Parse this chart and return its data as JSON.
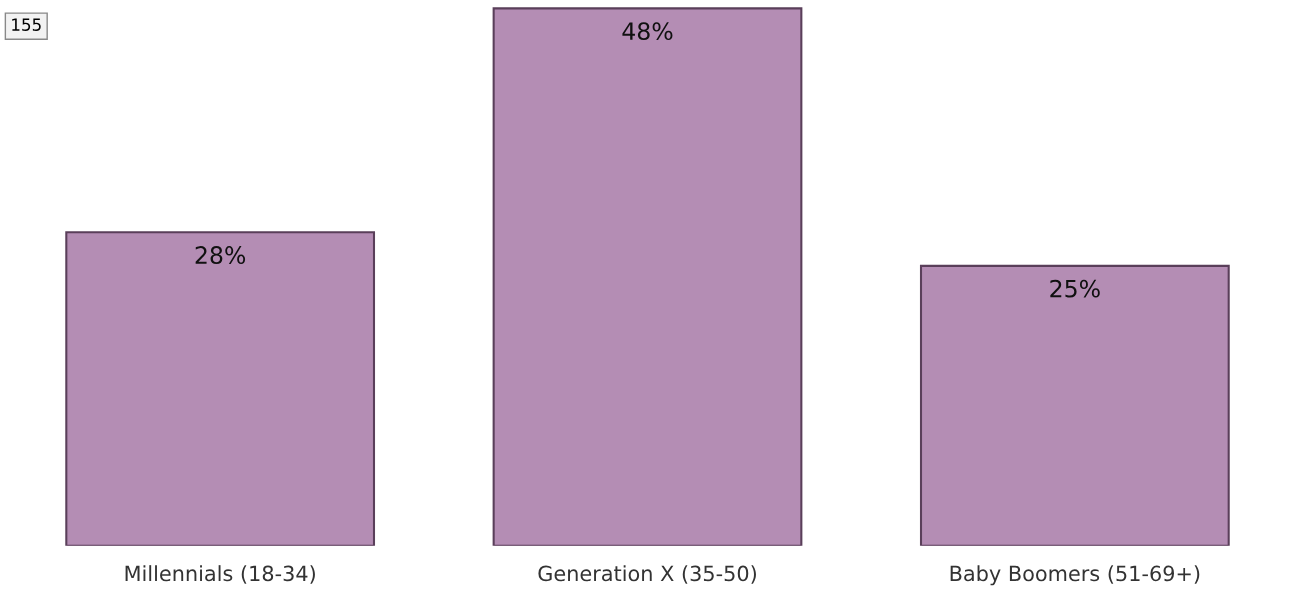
{
  "chart_data": {
    "type": "bar",
    "categories": [
      "Millennials (18-34)",
      "Generation X (35-50)",
      "Baby Boomers (51-69+)"
    ],
    "values": [
      28,
      48,
      25
    ],
    "value_labels": [
      "28%",
      "48%",
      "25%"
    ],
    "color": "#b48db4",
    "grid": false,
    "legend": false,
    "annotations": [
      "155"
    ]
  }
}
